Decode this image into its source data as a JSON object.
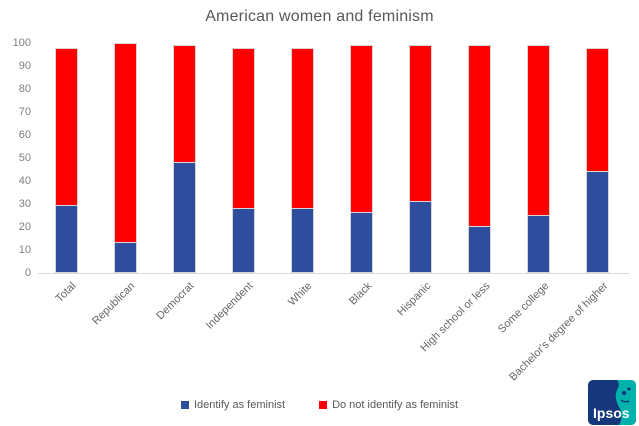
{
  "chart_data": {
    "type": "bar",
    "stacked": true,
    "title": "American women and feminism",
    "categories": [
      "Total",
      "Republican",
      "Democrat",
      "Independent",
      "White",
      "Black",
      "Hispanic",
      "High school or less",
      "Some college",
      "Bachelor's degree of higher"
    ],
    "series": [
      {
        "name": "Identify as feminist",
        "color": "#2e4d9c",
        "values": [
          29,
          13,
          48,
          28,
          28,
          26,
          31,
          20,
          25,
          44
        ]
      },
      {
        "name": "Do not identify as feminist",
        "color": "#ff0000",
        "values": [
          69,
          87,
          51,
          70,
          70,
          73,
          68,
          79,
          74,
          54
        ]
      }
    ],
    "ylim": [
      0,
      100
    ],
    "y_ticks": [
      0,
      10,
      20,
      30,
      40,
      50,
      60,
      70,
      80,
      90,
      100
    ],
    "grid": false,
    "legend_position": "bottom",
    "colors": {
      "title_text": "#595959",
      "tick_text": "#7f7f7f",
      "category_text": "#666666",
      "axis_line": "#d9d9d9"
    }
  },
  "branding": {
    "logo_text": "Ipsos",
    "logo_navy": "#16377c",
    "logo_teal": "#00b2a9"
  }
}
